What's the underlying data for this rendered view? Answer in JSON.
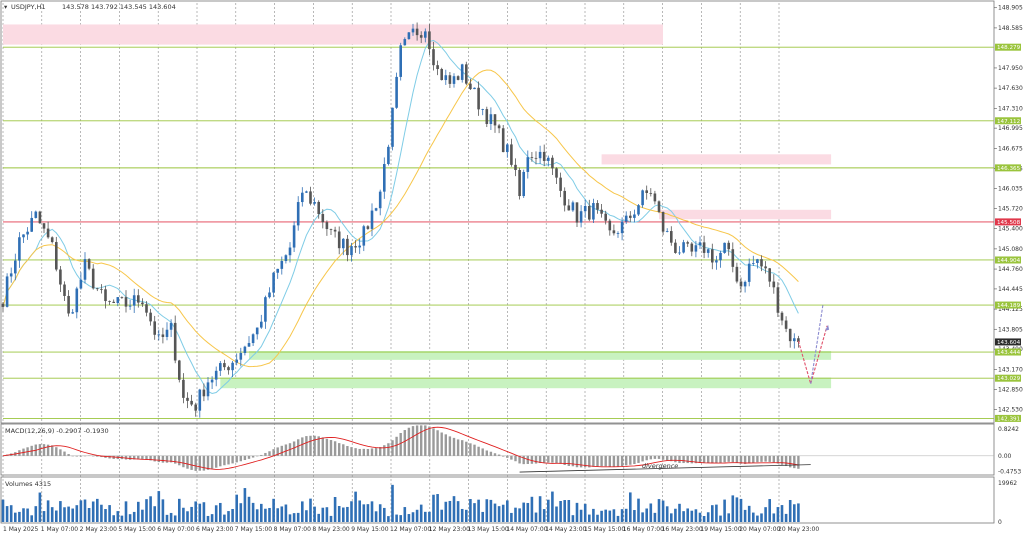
{
  "colors": {
    "background": "#ffffff",
    "bull_candle": "#2f6fb5",
    "bear_candle": "#555555",
    "ma_fast": "#7fcce6",
    "ma_slow": "#f7c64a",
    "level_line": "#9ac43c",
    "key_level": "#e0384b",
    "resistance_zone": "#fbdbe3",
    "support_zone": "#c8f2c0",
    "current_price_tag": "#2b2b2b",
    "macd_signal": "#e02020",
    "macd_hist": "#9a9a9a",
    "volume_bar": "#2f6fb5",
    "grid": "#8a8a8a",
    "forecast_arrow": "#e0506a",
    "forecast_arrow_alt": "#8a8ad0"
  },
  "header": {
    "symbol_label": "USDJPY,H1",
    "ohlc": "143.578 143.792 143.545 143.604"
  },
  "chart_data": {
    "type": "candlestick",
    "y_axis": {
      "range": [
        142.35,
        148.98
      ],
      "tick_labels": [
        "148.905",
        "148.585",
        "147.950",
        "147.630",
        "147.310",
        "146.995",
        "146.675",
        "146.355",
        "146.035",
        "145.720",
        "145.400",
        "145.080",
        "144.760",
        "144.445",
        "144.125",
        "143.805",
        "143.490",
        "143.170",
        "142.850",
        "142.530"
      ]
    },
    "x_axis": {
      "tick_labels": [
        "1 May 2025",
        "1 May 07:00",
        "2 May 23:00",
        "5 May 15:00",
        "6 May 07:00",
        "6 May 23:00",
        "7 May 15:00",
        "8 May 07:00",
        "8 May 23:00",
        "9 May 15:00",
        "12 May 07:00",
        "12 May 23:00",
        "13 May 15:00",
        "14 May 07:00",
        "14 May 23:00",
        "15 May 15:00",
        "16 May 07:00",
        "16 May 23:00",
        "19 May 15:00",
        "20 May 07:00",
        "20 May 23:00"
      ]
    },
    "horizontal_levels": [
      {
        "value": 148.279,
        "label": "148.279",
        "kind": "level"
      },
      {
        "value": 147.112,
        "label": "147.112",
        "kind": "level"
      },
      {
        "value": 146.365,
        "label": "146.365",
        "kind": "level"
      },
      {
        "value": 145.508,
        "label": "145.508",
        "kind": "key"
      },
      {
        "value": 144.904,
        "label": "144.904",
        "kind": "level"
      },
      {
        "value": 144.189,
        "label": "144.189",
        "kind": "level"
      },
      {
        "value": 143.604,
        "label": "143.604",
        "kind": "current"
      },
      {
        "value": 143.444,
        "label": "143.444",
        "kind": "level"
      },
      {
        "value": 143.029,
        "label": "143.029",
        "kind": "level"
      },
      {
        "value": 142.391,
        "label": "142.391",
        "kind": "level"
      }
    ],
    "resistance_zones": [
      {
        "from_index": 0,
        "to_index": 160,
        "top": 148.64,
        "bottom": 148.32
      },
      {
        "from_index": 146,
        "to_index": 201,
        "top": 146.58,
        "bottom": 146.42
      },
      {
        "from_index": 160,
        "to_index": 201,
        "top": 145.7,
        "bottom": 145.55
      }
    ],
    "support_zones": [
      {
        "from_index": 60,
        "to_index": 201,
        "top": 143.46,
        "bottom": 143.32
      },
      {
        "from_index": 53,
        "to_index": 201,
        "top": 143.04,
        "bottom": 142.87
      }
    ],
    "anchors": [
      [
        0,
        144.3
      ],
      [
        4,
        145.2
      ],
      [
        8,
        145.6
      ],
      [
        12,
        145.1
      ],
      [
        16,
        144.0
      ],
      [
        20,
        144.8
      ],
      [
        25,
        144.2
      ],
      [
        30,
        144.2
      ],
      [
        34,
        144.3
      ],
      [
        38,
        143.6
      ],
      [
        41,
        143.8
      ],
      [
        44,
        142.7
      ],
      [
        47,
        142.6
      ],
      [
        50,
        143.0
      ],
      [
        56,
        143.3
      ],
      [
        62,
        143.8
      ],
      [
        66,
        144.6
      ],
      [
        70,
        145.1
      ],
      [
        73,
        146.0
      ],
      [
        76,
        145.8
      ],
      [
        80,
        145.3
      ],
      [
        84,
        145.1
      ],
      [
        88,
        145.3
      ],
      [
        92,
        146.0
      ],
      [
        95,
        147.2
      ],
      [
        97,
        148.2
      ],
      [
        100,
        148.5
      ],
      [
        103,
        148.6
      ],
      [
        106,
        147.9
      ],
      [
        109,
        147.7
      ],
      [
        112,
        147.9
      ],
      [
        116,
        147.4
      ],
      [
        120,
        147.0
      ],
      [
        124,
        146.5
      ],
      [
        126,
        145.9
      ],
      [
        128,
        146.6
      ],
      [
        132,
        146.6
      ],
      [
        136,
        146.0
      ],
      [
        140,
        145.6
      ],
      [
        144,
        145.7
      ],
      [
        148,
        145.3
      ],
      [
        152,
        145.5
      ],
      [
        156,
        145.9
      ],
      [
        158,
        146.0
      ],
      [
        161,
        145.4
      ],
      [
        164,
        145.1
      ],
      [
        168,
        145.0
      ],
      [
        171,
        145.1
      ],
      [
        174,
        144.9
      ],
      [
        176,
        145.1
      ],
      [
        180,
        144.5
      ],
      [
        182,
        144.8
      ],
      [
        184,
        144.9
      ],
      [
        187,
        144.6
      ],
      [
        189,
        144.2
      ],
      [
        191,
        143.8
      ],
      [
        193,
        143.6
      ]
    ],
    "forecast_path": [
      [
        194,
        143.62
      ],
      [
        197,
        142.94
      ],
      [
        201,
        143.86
      ]
    ],
    "forecast_path_alt": [
      [
        197,
        142.94
      ],
      [
        200,
        144.2
      ]
    ],
    "macd": {
      "label": "MACD(12,26,9) -0.2907 -0.1930",
      "range": [
        -0.56,
        0.92
      ],
      "tick_labels": [
        "0.8242",
        "0.00",
        "-0.4753"
      ],
      "annotation": "divergence"
    },
    "volume": {
      "label": "Volumes 4315",
      "range": [
        0,
        22000
      ],
      "tick_labels": [
        "19962",
        "0"
      ]
    }
  }
}
